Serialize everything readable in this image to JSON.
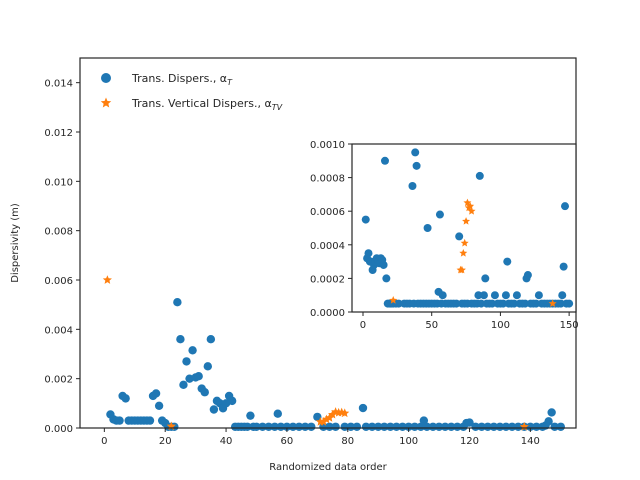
{
  "chart_data": [
    {
      "type": "scatter",
      "panel": "main",
      "xlabel": "Randomized data order",
      "ylabel": "Dispersivity (m)",
      "xlim": [
        -8,
        155
      ],
      "ylim": [
        0,
        0.015
      ],
      "xticks": [
        0,
        20,
        40,
        60,
        80,
        100,
        120,
        140
      ],
      "xtick_labels": [
        "0",
        "20",
        "40",
        "60",
        "80",
        "100",
        "120",
        "140"
      ],
      "yticks": [
        0,
        0.002,
        0.004,
        0.006,
        0.008,
        0.01,
        0.012,
        0.014
      ],
      "ytick_labels": [
        "0.000",
        "0.002",
        "0.004",
        "0.006",
        "0.008",
        "0.010",
        "0.012",
        "0.014"
      ],
      "grid": false,
      "legend_position": "upper-left",
      "series": [
        {
          "name": "Trans. Dispers., α",
          "name_subscript": "T",
          "marker": "circle",
          "color": "#1f77b4",
          "points": [
            [
              2,
              0.00055
            ],
            [
              3,
              0.00035
            ],
            [
              4,
              0.0003
            ],
            [
              5,
              0.0003
            ],
            [
              6,
              0.0013
            ],
            [
              7,
              0.0012
            ],
            [
              8,
              0.0003
            ],
            [
              9,
              0.0003
            ],
            [
              10,
              0.0003
            ],
            [
              11,
              0.0003
            ],
            [
              12,
              0.0003
            ],
            [
              13,
              0.0003
            ],
            [
              14,
              0.0003
            ],
            [
              15,
              0.0003
            ],
            [
              16,
              0.0013
            ],
            [
              17,
              0.0014
            ],
            [
              18,
              0.0009
            ],
            [
              19,
              0.0003
            ],
            [
              20,
              0.0002
            ],
            [
              21,
              5e-05
            ],
            [
              22,
              5e-05
            ],
            [
              23,
              5e-05
            ],
            [
              24,
              0.0051
            ],
            [
              25,
              0.0036
            ],
            [
              26,
              0.00175
            ],
            [
              27,
              0.0027
            ],
            [
              28,
              0.002
            ],
            [
              29,
              0.00315
            ],
            [
              30,
              0.00205
            ],
            [
              31,
              0.0021
            ],
            [
              32,
              0.0016
            ],
            [
              33,
              0.00145
            ],
            [
              34,
              0.0025
            ],
            [
              35,
              0.0036
            ],
            [
              36,
              0.00075
            ],
            [
              37,
              0.0011
            ],
            [
              38,
              0.001
            ],
            [
              39,
              0.0008
            ],
            [
              40,
              0.001
            ],
            [
              41,
              0.0013
            ],
            [
              42,
              0.0011
            ],
            [
              43,
              5e-05
            ],
            [
              44,
              5e-05
            ],
            [
              45,
              5e-05
            ],
            [
              46,
              5e-05
            ],
            [
              47,
              5e-05
            ],
            [
              48,
              0.0005
            ],
            [
              49,
              5e-05
            ],
            [
              50,
              5e-05
            ],
            [
              52,
              5e-05
            ],
            [
              54,
              5e-05
            ],
            [
              56,
              5e-05
            ],
            [
              57,
              0.00058
            ],
            [
              58,
              5e-05
            ],
            [
              60,
              5e-05
            ],
            [
              62,
              5e-05
            ],
            [
              64,
              5e-05
            ],
            [
              66,
              5e-05
            ],
            [
              68,
              5e-05
            ],
            [
              70,
              0.00045
            ],
            [
              72,
              5e-05
            ],
            [
              74,
              5e-05
            ],
            [
              76,
              5e-05
            ],
            [
              79,
              5e-05
            ],
            [
              81,
              5e-05
            ],
            [
              83,
              5e-05
            ],
            [
              85,
              0.00081
            ],
            [
              86,
              5e-05
            ],
            [
              88,
              5e-05
            ],
            [
              90,
              5e-05
            ],
            [
              92,
              5e-05
            ],
            [
              94,
              5e-05
            ],
            [
              96,
              5e-05
            ],
            [
              98,
              5e-05
            ],
            [
              100,
              5e-05
            ],
            [
              102,
              5e-05
            ],
            [
              104,
              5e-05
            ],
            [
              105,
              0.0003
            ],
            [
              106,
              5e-05
            ],
            [
              108,
              5e-05
            ],
            [
              110,
              5e-05
            ],
            [
              112,
              5e-05
            ],
            [
              114,
              5e-05
            ],
            [
              116,
              5e-05
            ],
            [
              118,
              5e-05
            ],
            [
              119,
              0.0002
            ],
            [
              120,
              0.00022
            ],
            [
              122,
              5e-05
            ],
            [
              124,
              5e-05
            ],
            [
              126,
              5e-05
            ],
            [
              128,
              5e-05
            ],
            [
              130,
              5e-05
            ],
            [
              132,
              5e-05
            ],
            [
              134,
              5e-05
            ],
            [
              136,
              5e-05
            ],
            [
              138,
              5e-05
            ],
            [
              140,
              5e-05
            ],
            [
              142,
              5e-05
            ],
            [
              144,
              5e-05
            ],
            [
              145,
              0.0001
            ],
            [
              146,
              0.00027
            ],
            [
              147,
              0.00063
            ],
            [
              148,
              5e-05
            ],
            [
              150,
              5e-05
            ]
          ]
        },
        {
          "name": "Trans. Vertical Dispers., α",
          "name_subscript": "TV",
          "marker": "star",
          "color": "#ff7f0e",
          "points": [
            [
              1,
              0.006
            ],
            [
              22,
              7e-05
            ],
            [
              71,
              0.00025
            ],
            [
              72,
              0.00025
            ],
            [
              73,
              0.00035
            ],
            [
              74,
              0.00041
            ],
            [
              75,
              0.00054
            ],
            [
              76,
              0.00065
            ],
            [
              77,
              0.00062
            ],
            [
              78,
              0.00063
            ],
            [
              79,
              0.0006
            ],
            [
              138,
              5e-05
            ]
          ]
        }
      ]
    },
    {
      "type": "scatter",
      "panel": "inset",
      "xlim": [
        -8,
        155
      ],
      "ylim": [
        0,
        0.001
      ],
      "xticks": [
        0,
        50,
        100,
        150
      ],
      "xtick_labels": [
        "0",
        "50",
        "100",
        "150"
      ],
      "yticks": [
        0,
        0.0002,
        0.0004,
        0.0006,
        0.0008,
        0.001
      ],
      "ytick_labels": [
        "0.0000",
        "0.0002",
        "0.0004",
        "0.0006",
        "0.0008",
        "0.0010"
      ],
      "grid": false,
      "series": [
        {
          "marker": "circle",
          "color": "#1f77b4",
          "points": [
            [
              2,
              0.00055
            ],
            [
              3,
              0.00032
            ],
            [
              4,
              0.00035
            ],
            [
              5,
              0.0003
            ],
            [
              6,
              0.0003
            ],
            [
              7,
              0.00025
            ],
            [
              8,
              0.00028
            ],
            [
              9,
              0.0003
            ],
            [
              10,
              0.00032
            ],
            [
              11,
              0.0003
            ],
            [
              12,
              0.00029
            ],
            [
              13,
              0.00032
            ],
            [
              14,
              0.00031
            ],
            [
              15,
              0.00028
            ],
            [
              16,
              0.0009
            ],
            [
              17,
              0.0002
            ],
            [
              18,
              5e-05
            ],
            [
              19,
              5e-05
            ],
            [
              20,
              5e-05
            ],
            [
              21,
              5e-05
            ],
            [
              22,
              5e-05
            ],
            [
              24,
              5e-05
            ],
            [
              26,
              5e-05
            ],
            [
              30,
              5e-05
            ],
            [
              32,
              5e-05
            ],
            [
              34,
              5e-05
            ],
            [
              36,
              0.00075
            ],
            [
              37,
              5e-05
            ],
            [
              38,
              0.00095
            ],
            [
              39,
              0.00087
            ],
            [
              40,
              5e-05
            ],
            [
              42,
              5e-05
            ],
            [
              44,
              5e-05
            ],
            [
              46,
              5e-05
            ],
            [
              47,
              0.0005
            ],
            [
              48,
              5e-05
            ],
            [
              50,
              5e-05
            ],
            [
              52,
              5e-05
            ],
            [
              54,
              5e-05
            ],
            [
              55,
              0.00012
            ],
            [
              56,
              0.00058
            ],
            [
              57,
              5e-05
            ],
            [
              58,
              0.0001
            ],
            [
              60,
              5e-05
            ],
            [
              62,
              5e-05
            ],
            [
              64,
              5e-05
            ],
            [
              66,
              5e-05
            ],
            [
              68,
              5e-05
            ],
            [
              70,
              0.00045
            ],
            [
              72,
              5e-05
            ],
            [
              74,
              5e-05
            ],
            [
              76,
              5e-05
            ],
            [
              79,
              5e-05
            ],
            [
              81,
              5e-05
            ],
            [
              83,
              5e-05
            ],
            [
              84,
              0.0001
            ],
            [
              85,
              0.00081
            ],
            [
              86,
              5e-05
            ],
            [
              88,
              0.0001
            ],
            [
              89,
              0.0002
            ],
            [
              90,
              5e-05
            ],
            [
              92,
              5e-05
            ],
            [
              94,
              5e-05
            ],
            [
              96,
              0.0001
            ],
            [
              98,
              5e-05
            ],
            [
              100,
              5e-05
            ],
            [
              102,
              5e-05
            ],
            [
              104,
              0.0001
            ],
            [
              105,
              0.0003
            ],
            [
              106,
              5e-05
            ],
            [
              108,
              5e-05
            ],
            [
              110,
              5e-05
            ],
            [
              112,
              0.0001
            ],
            [
              114,
              5e-05
            ],
            [
              116,
              5e-05
            ],
            [
              118,
              5e-05
            ],
            [
              119,
              0.0002
            ],
            [
              120,
              0.00022
            ],
            [
              122,
              5e-05
            ],
            [
              124,
              5e-05
            ],
            [
              126,
              5e-05
            ],
            [
              128,
              0.0001
            ],
            [
              130,
              5e-05
            ],
            [
              132,
              5e-05
            ],
            [
              134,
              5e-05
            ],
            [
              136,
              5e-05
            ],
            [
              138,
              5e-05
            ],
            [
              140,
              5e-05
            ],
            [
              142,
              5e-05
            ],
            [
              144,
              5e-05
            ],
            [
              145,
              0.0001
            ],
            [
              146,
              0.00027
            ],
            [
              147,
              0.00063
            ],
            [
              148,
              5e-05
            ],
            [
              150,
              5e-05
            ]
          ]
        },
        {
          "marker": "star",
          "color": "#ff7f0e",
          "points": [
            [
              22,
              7e-05
            ],
            [
              71,
              0.00025
            ],
            [
              72,
              0.00025
            ],
            [
              73,
              0.00035
            ],
            [
              74,
              0.00041
            ],
            [
              75,
              0.00054
            ],
            [
              76,
              0.00065
            ],
            [
              77,
              0.00062
            ],
            [
              78,
              0.00063
            ],
            [
              79,
              0.0006
            ],
            [
              138,
              5e-05
            ]
          ]
        }
      ]
    }
  ]
}
